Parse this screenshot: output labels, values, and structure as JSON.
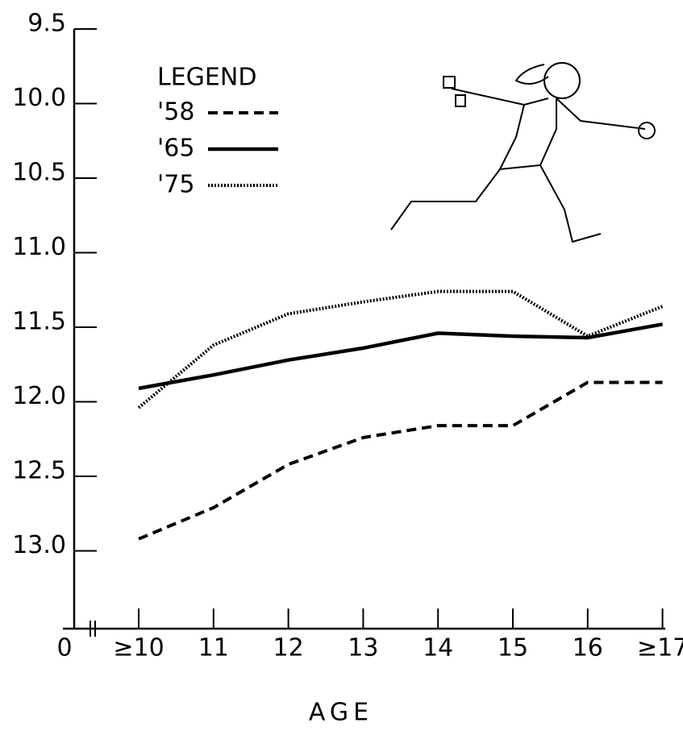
{
  "chart_data": {
    "type": "line",
    "legend_title": "LEGEND",
    "x_label": "AGE",
    "x_origin_label": "0",
    "categories": [
      "≥10",
      "11",
      "12",
      "13",
      "14",
      "15",
      "16",
      "≥17"
    ],
    "series": [
      {
        "name": "'58",
        "color": "#000000",
        "style": "dashed",
        "values": [
          12.92,
          12.71,
          12.42,
          12.24,
          12.16,
          12.16,
          11.87,
          11.87
        ]
      },
      {
        "name": "'65",
        "color": "#000000",
        "style": "solid",
        "values": [
          11.91,
          11.82,
          11.72,
          11.64,
          11.54,
          11.56,
          11.57,
          11.48
        ]
      },
      {
        "name": "'75",
        "color": "#000000",
        "style": "dotted",
        "values": [
          12.04,
          11.62,
          11.41,
          11.33,
          11.26,
          11.26,
          11.56,
          11.36
        ]
      }
    ],
    "ylim": [
      13.5,
      9.5
    ],
    "yticks": [
      9.5,
      {
        "value": 10,
        "label": "10.0"
      },
      10.5,
      {
        "value": 11,
        "label": "11.0"
      },
      11.5,
      {
        "value": 12,
        "label": "12.0"
      },
      12.5,
      {
        "value": 13,
        "label": "13.0"
      }
    ],
    "legend": "upper left"
  }
}
